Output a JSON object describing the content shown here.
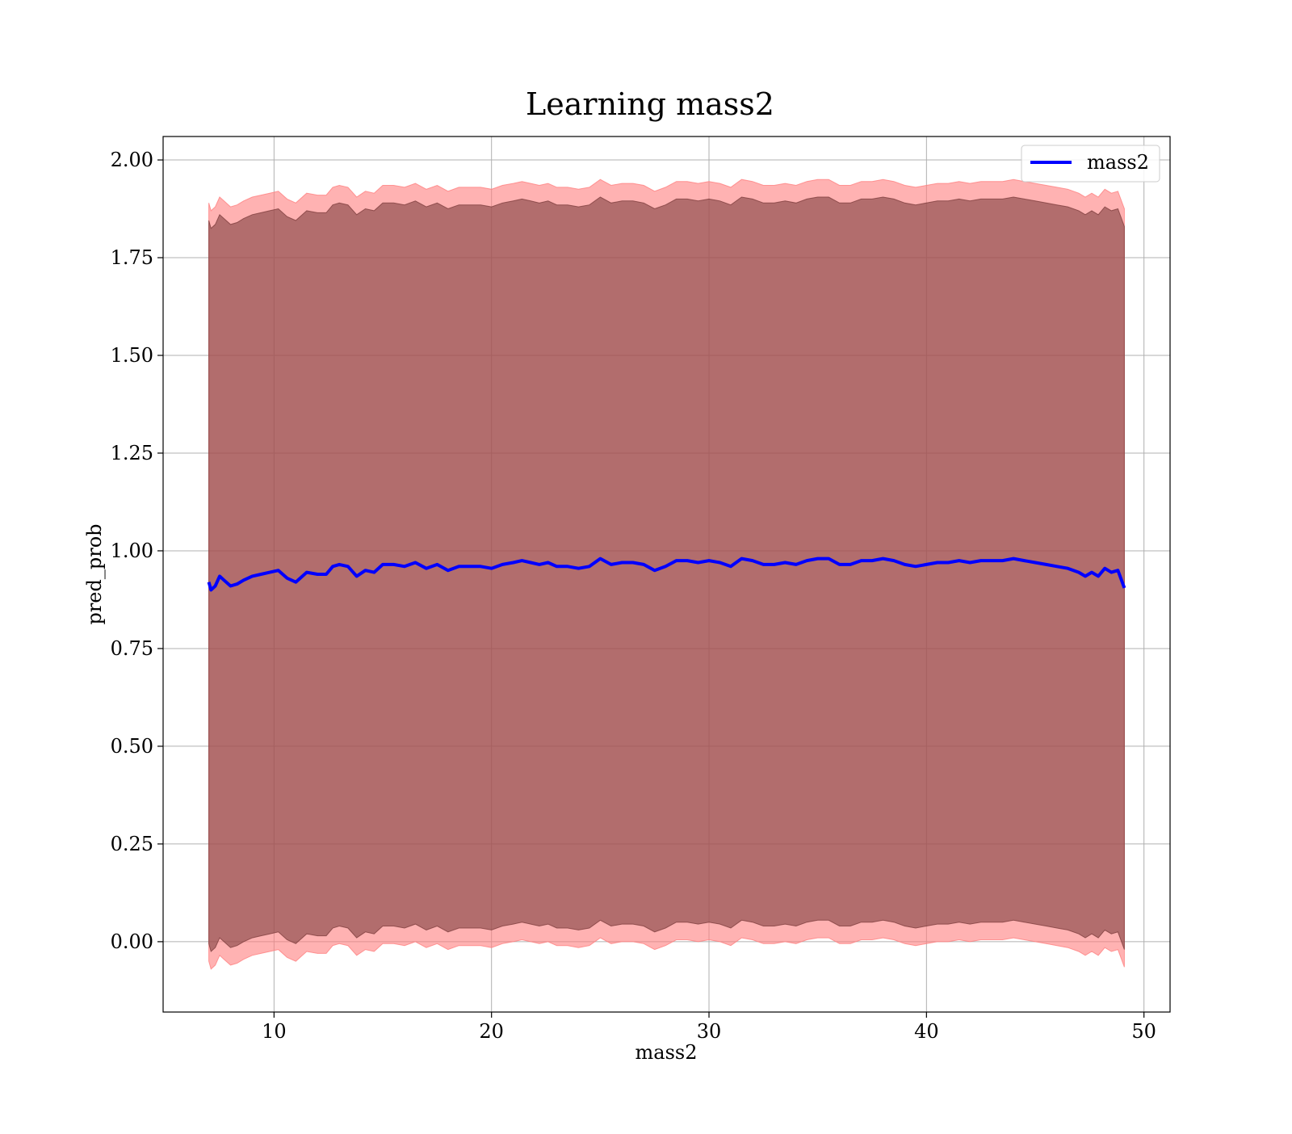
{
  "chart_data": {
    "type": "area",
    "title": "Learning mass2",
    "xlabel": "mass2",
    "ylabel": "pred_prob",
    "xlim": [
      4.9,
      51.2
    ],
    "ylim": [
      -0.18,
      2.06
    ],
    "xticks": [
      10,
      20,
      30,
      40,
      50
    ],
    "xtick_labels": [
      "10",
      "20",
      "30",
      "40",
      "50"
    ],
    "yticks": [
      0.0,
      0.25,
      0.5,
      0.75,
      1.0,
      1.25,
      1.5,
      1.75,
      2.0
    ],
    "ytick_labels": [
      "0.00",
      "0.25",
      "0.50",
      "0.75",
      "1.00",
      "1.25",
      "1.50",
      "1.75",
      "2.00"
    ],
    "grid": true,
    "legend": {
      "placement": "top-right",
      "entries": [
        {
          "label": "mass2",
          "color": "#0000ff"
        }
      ]
    },
    "x": [
      7.0,
      7.1,
      7.3,
      7.5,
      7.7,
      8.0,
      8.3,
      8.6,
      9.0,
      9.4,
      9.8,
      10.2,
      10.6,
      11.0,
      11.5,
      12.0,
      12.4,
      12.7,
      13.0,
      13.4,
      13.8,
      14.2,
      14.6,
      15.0,
      15.5,
      16.0,
      16.5,
      17.0,
      17.5,
      18.0,
      18.5,
      19.0,
      19.5,
      20.0,
      20.5,
      21.0,
      21.4,
      21.8,
      22.2,
      22.6,
      23.0,
      23.5,
      24.0,
      24.5,
      25.0,
      25.5,
      26.0,
      26.5,
      27.0,
      27.5,
      28.0,
      28.5,
      29.0,
      29.5,
      30.0,
      30.5,
      31.0,
      31.5,
      32.0,
      32.5,
      33.0,
      33.5,
      34.0,
      34.5,
      35.0,
      35.5,
      36.0,
      36.5,
      37.0,
      37.5,
      38.0,
      38.5,
      39.0,
      39.5,
      40.0,
      40.5,
      41.0,
      41.5,
      42.0,
      42.5,
      43.0,
      43.5,
      44.0,
      44.5,
      45.0,
      45.5,
      46.0,
      46.5,
      47.0,
      47.3,
      47.6,
      47.9,
      48.2,
      48.5,
      48.8,
      49.1
    ],
    "series": [
      {
        "name": "mass2",
        "color": "#0000ff",
        "values": [
          0.92,
          0.9,
          0.91,
          0.935,
          0.925,
          0.91,
          0.915,
          0.925,
          0.935,
          0.94,
          0.945,
          0.95,
          0.93,
          0.92,
          0.945,
          0.94,
          0.94,
          0.96,
          0.965,
          0.96,
          0.935,
          0.95,
          0.945,
          0.965,
          0.965,
          0.96,
          0.97,
          0.955,
          0.965,
          0.95,
          0.96,
          0.96,
          0.96,
          0.955,
          0.965,
          0.97,
          0.975,
          0.97,
          0.965,
          0.97,
          0.96,
          0.96,
          0.955,
          0.96,
          0.98,
          0.965,
          0.97,
          0.97,
          0.965,
          0.95,
          0.96,
          0.975,
          0.975,
          0.97,
          0.975,
          0.97,
          0.96,
          0.98,
          0.975,
          0.965,
          0.965,
          0.97,
          0.965,
          0.975,
          0.98,
          0.98,
          0.965,
          0.965,
          0.975,
          0.975,
          0.98,
          0.975,
          0.965,
          0.96,
          0.965,
          0.97,
          0.97,
          0.975,
          0.97,
          0.975,
          0.975,
          0.975,
          0.98,
          0.975,
          0.97,
          0.965,
          0.96,
          0.955,
          0.945,
          0.935,
          0.945,
          0.935,
          0.955,
          0.945,
          0.95,
          0.905
        ]
      }
    ],
    "bands": [
      {
        "color": "#ff7f7f",
        "opacity": 0.6,
        "width_offset": 0.97
      },
      {
        "color": "#7f3f3f",
        "opacity": 0.6,
        "width_offset": 0.925
      }
    ]
  }
}
